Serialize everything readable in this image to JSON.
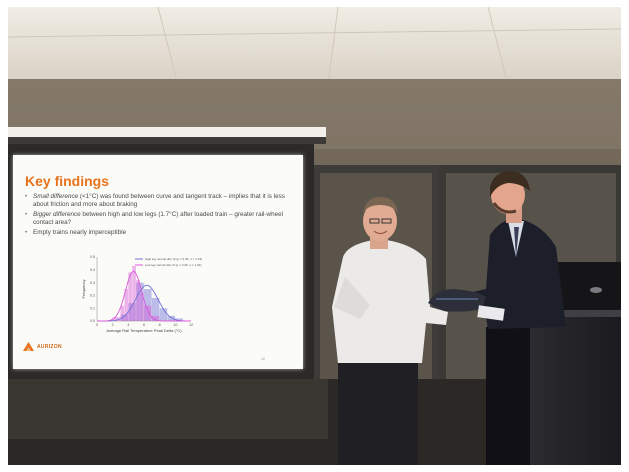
{
  "slide": {
    "title": "Key findings",
    "bullets": [
      {
        "emphasis": "Small difference",
        "text": " (<1°C) was found between curve and tangent track – implies that it is less about friction and more about braking"
      },
      {
        "emphasis": "Bigger difference",
        "text": " between high and low legs (1.7°C) after loaded train – greater rail-wheel contact area?"
      },
      {
        "emphasis": "",
        "text": "Empty trains nearly imperceptible"
      }
    ],
    "logo_text": "AURIZON",
    "page_number": "12"
  },
  "chart_data": {
    "type": "histogram",
    "xlabel": "Average Rail Temperature Peak Delta (°C)",
    "ylabel": "Frequency",
    "xlim": [
      0,
      12
    ],
    "ylim": [
      0,
      0.5
    ],
    "xticks": [
      0,
      2,
      4,
      6,
      8,
      10,
      12
    ],
    "yticks": [
      0.0,
      0.1,
      0.2,
      0.3,
      0.4,
      0.5
    ],
    "ytick_labels": [
      "0.0",
      "0.1",
      "0.2",
      "0.3",
      "0.4",
      "0.5"
    ],
    "series": [
      {
        "name": "High leg normal dist. fit (μ = 6.36, σ = 1.43)",
        "color": "#6f6fd8",
        "bins": [
          [
            3,
            4,
            0.05
          ],
          [
            4,
            5,
            0.14
          ],
          [
            5,
            6,
            0.3
          ],
          [
            6,
            7,
            0.25
          ],
          [
            7,
            8,
            0.18
          ],
          [
            8,
            9,
            0.1
          ],
          [
            9,
            10,
            0.04
          ],
          [
            10,
            11,
            0.02
          ]
        ],
        "fit": {
          "mu": 6.36,
          "sigma": 1.43
        }
      },
      {
        "name": "Low leg normal dist. fit (μ = 4.66, σ = 1.03)",
        "color": "#d85ad8",
        "bins": [
          [
            2,
            3,
            0.03
          ],
          [
            3,
            3.5,
            0.12
          ],
          [
            3.5,
            4,
            0.25
          ],
          [
            4,
            4.5,
            0.38
          ],
          [
            4.5,
            5,
            0.43
          ],
          [
            5,
            5.5,
            0.32
          ],
          [
            5.5,
            6,
            0.22
          ],
          [
            6,
            7,
            0.12
          ],
          [
            7,
            8,
            0.04
          ]
        ],
        "fit": {
          "mu": 4.66,
          "sigma": 1.03
        }
      }
    ]
  },
  "colors": {
    "title": "#e8731c",
    "wall": "#5a5045",
    "screen": "#fbfbf7"
  }
}
